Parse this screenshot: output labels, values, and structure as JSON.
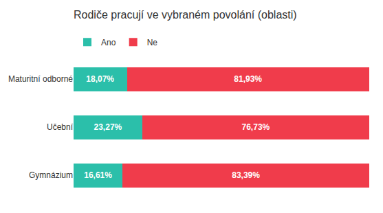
{
  "chart_data": {
    "type": "bar",
    "title": "Rodiče pracují ve vybraném povolání (oblasti)",
    "orientation": "horizontal",
    "stacked": true,
    "data_labels": true,
    "categories": [
      "Maturitní odborné",
      "Učební",
      "Gymnázium"
    ],
    "series": [
      {
        "name": "Ano",
        "color": "#2bbfaa",
        "values": [
          18.07,
          23.27,
          16.61
        ],
        "value_labels": [
          "18,07%",
          "23,27%",
          "16,61%"
        ]
      },
      {
        "name": "Ne",
        "color": "#f03c4b",
        "values": [
          81.93,
          76.73,
          83.39
        ],
        "value_labels": [
          "81,93%",
          "76,73%",
          "83,39%"
        ]
      }
    ],
    "xlim": [
      0,
      100
    ],
    "grid": false,
    "legend": "upper left",
    "tick_labels": "y"
  }
}
